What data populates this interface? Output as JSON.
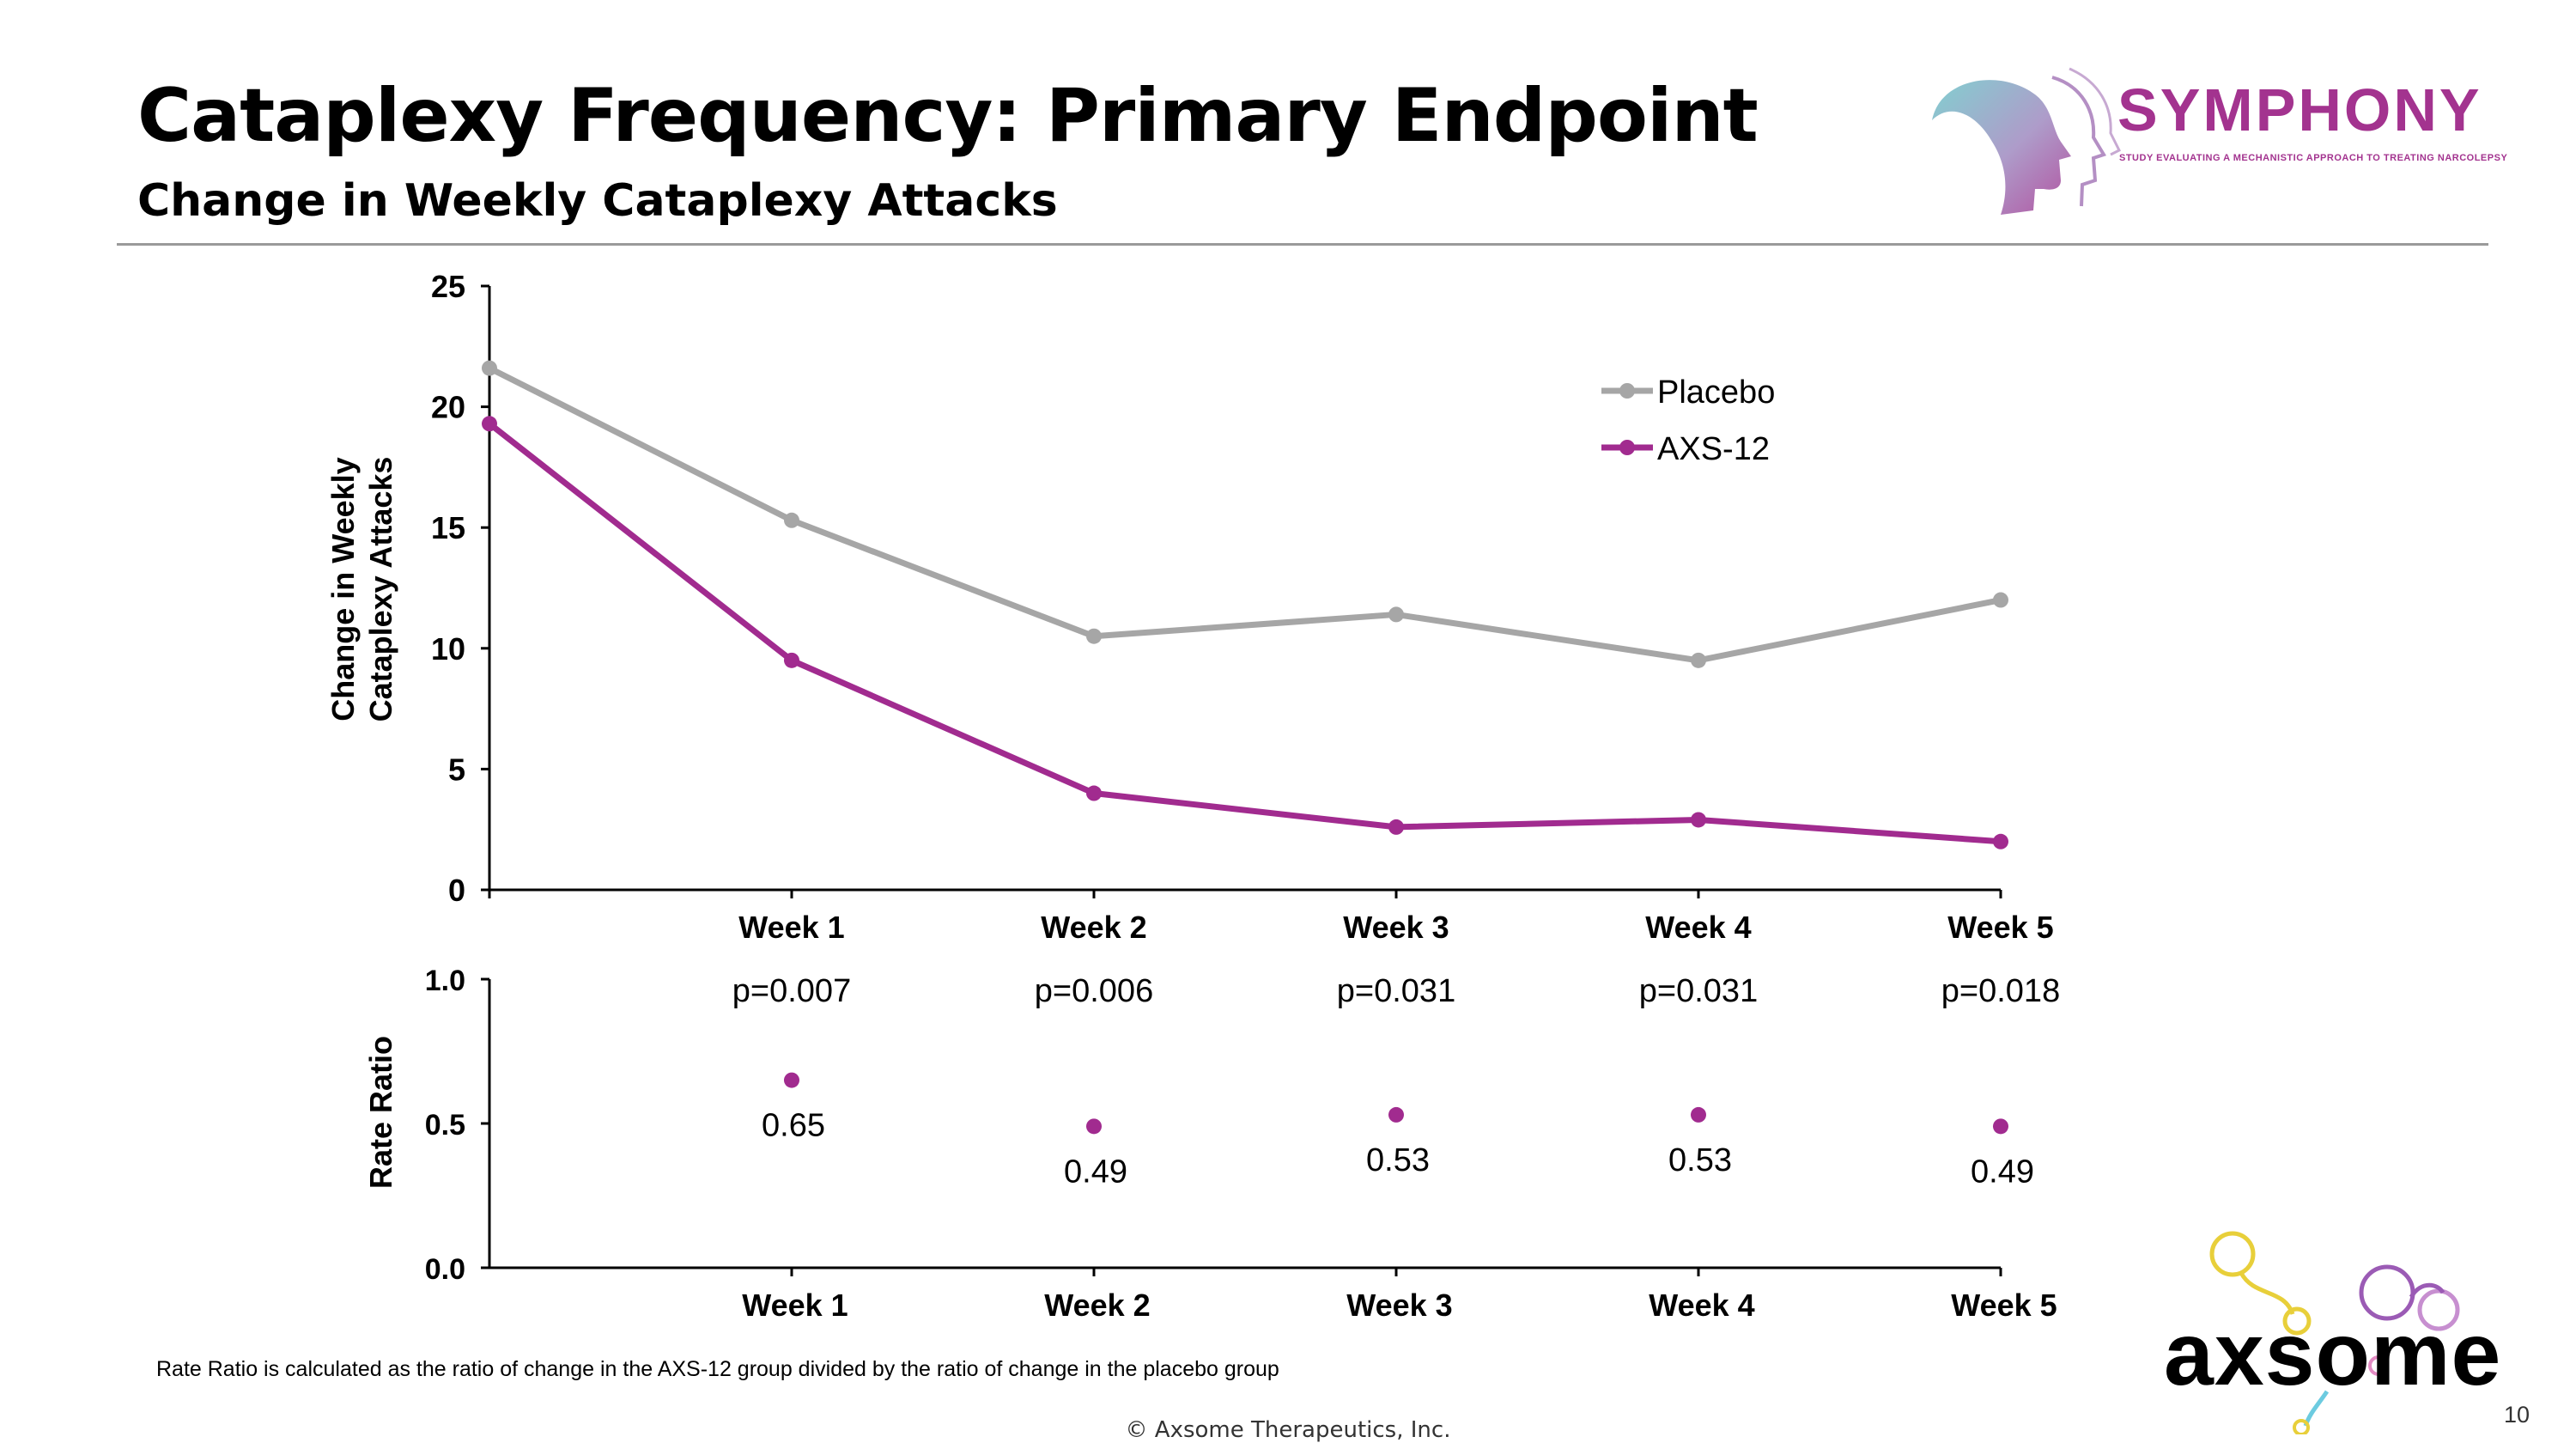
{
  "slide": {
    "title": "Cataplexy Frequency: Primary Endpoint",
    "subtitle": "Change in Weekly Cataplexy Attacks",
    "footnote": "Rate Ratio is calculated as the ratio of change in the AXS-12 group divided by the ratio of change in the placebo group",
    "copyright": "© Axsome Therapeutics, Inc.",
    "page_number": "10"
  },
  "logos": {
    "symphony": "SYMPHONY",
    "symphony_tagline": "STUDY EVALUATING A MECHANISTIC APPROACH TO TREATING NARCOLEPSY",
    "axsome": "axsome"
  },
  "colors": {
    "placebo": "#a6a6a6",
    "axs12": "#a12b8f",
    "axis": "#000000",
    "rule": "#9a9a9a"
  },
  "chart_data": [
    {
      "type": "line",
      "title": "Change in Weekly Cataplexy Attacks",
      "ylabel_lines": [
        "Change in Weekly",
        "Cataplexy Attacks"
      ],
      "categories": [
        "Week 1",
        "Week 2",
        "Week 3",
        "Week 4",
        "Week 5"
      ],
      "x_values": [
        0,
        1,
        2,
        3,
        4,
        5
      ],
      "ylim": [
        0,
        25
      ],
      "yticks": [
        0,
        5,
        10,
        15,
        20,
        25
      ],
      "legend_position": "top-right",
      "grid": false,
      "series": [
        {
          "name": "Placebo",
          "values": [
            21.6,
            15.3,
            10.5,
            11.4,
            9.5,
            12.0
          ]
        },
        {
          "name": "AXS-12",
          "values": [
            19.3,
            9.5,
            4.0,
            2.6,
            2.9,
            2.0
          ]
        }
      ]
    },
    {
      "type": "scatter",
      "title": "Rate Ratio",
      "ylabel": "Rate Ratio",
      "categories": [
        "Week 1",
        "Week 2",
        "Week 3",
        "Week 4",
        "Week 5"
      ],
      "ylim": [
        0,
        1
      ],
      "ytick_labels": [
        "0.0",
        "0.5",
        "1.0"
      ],
      "values": [
        0.65,
        0.49,
        0.53,
        0.53,
        0.49
      ],
      "value_labels": [
        "0.65",
        "0.49",
        "0.53",
        "0.53",
        "0.49"
      ],
      "p_values": [
        "p=0.007",
        "p=0.006",
        "p=0.031",
        "p=0.031",
        "p=0.018"
      ]
    }
  ]
}
